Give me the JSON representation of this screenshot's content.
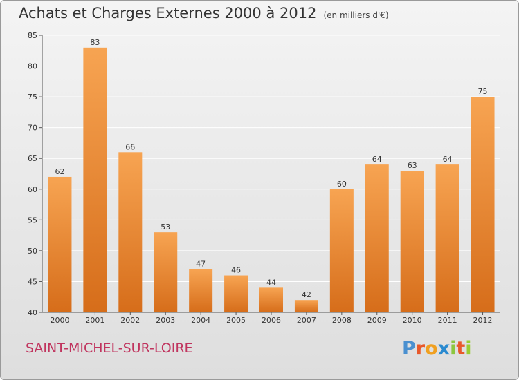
{
  "header": {
    "title": "Achats et Charges Externes 2000 à 2012",
    "subtitle": "(en milliers d'€)"
  },
  "footer": {
    "commune": "SAINT-MICHEL-SUR-LOIRE",
    "logo": "Proxiti",
    "logo_colors": [
      "#4a90d0",
      "#e8582a",
      "#f0a020",
      "#2a8ad0",
      "#8cc63f",
      "#e8582a",
      "#9acd32"
    ]
  },
  "colors": {
    "bar_top": "#f7a452",
    "bar_bottom": "#d66d1a",
    "grid": "#ffffff",
    "axis_text": "#333333"
  },
  "chart_data": {
    "type": "bar",
    "categories": [
      "2000",
      "2001",
      "2002",
      "2003",
      "2004",
      "2005",
      "2006",
      "2007",
      "2008",
      "2009",
      "2010",
      "2011",
      "2012"
    ],
    "values": [
      62,
      83,
      66,
      53,
      47,
      46,
      44,
      42,
      60,
      64,
      63,
      64,
      75
    ],
    "ylim": [
      40,
      85
    ],
    "yticks": [
      40,
      45,
      50,
      55,
      60,
      65,
      70,
      75,
      80,
      85
    ],
    "grid": true
  }
}
